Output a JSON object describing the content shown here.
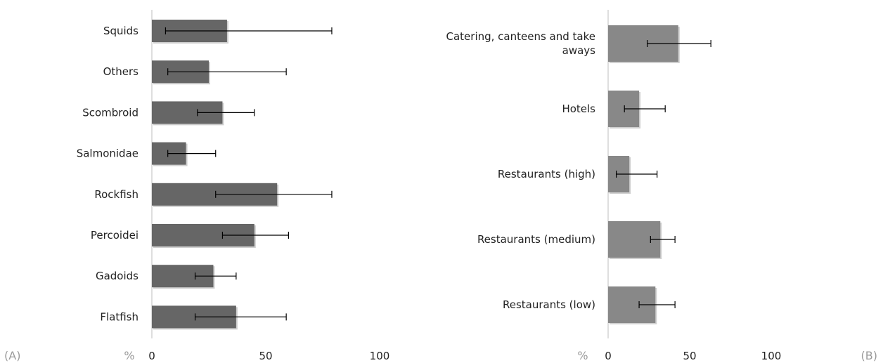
{
  "chart_data": [
    {
      "type": "bar",
      "orientation": "horizontal",
      "panel_label": "(A)",
      "unit_label": "%",
      "categories": [
        "Squids",
        "Others",
        "Scombroid",
        "Salmonidae",
        "Rockfish",
        "Percoidei",
        "Gadoids",
        "Flatfish"
      ],
      "values": [
        33,
        25,
        31,
        15,
        55,
        45,
        27,
        37
      ],
      "error_low": [
        6,
        7,
        20,
        7,
        28,
        31,
        19,
        19
      ],
      "error_high": [
        79,
        59,
        45,
        28,
        79,
        60,
        37,
        59
      ],
      "xlim": [
        0,
        100
      ],
      "xticks": [
        "0",
        "50",
        "100"
      ],
      "bar_color": "#666666",
      "grid": false
    },
    {
      "type": "bar",
      "orientation": "horizontal",
      "panel_label": "(B)",
      "unit_label": "%",
      "categories": [
        "Catering, canteens and take aways",
        "Hotels",
        "Restaurants (high)",
        "Restaurants (medium)",
        "Restaurants (low)"
      ],
      "category_lines": [
        [
          "Catering, canteens and take",
          "aways"
        ],
        [
          "Hotels"
        ],
        [
          "Restaurants (high)"
        ],
        [
          "Restaurants (medium)"
        ],
        [
          "Restaurants (low)"
        ]
      ],
      "values": [
        43,
        19,
        13,
        32,
        29
      ],
      "error_low": [
        24,
        10,
        5,
        26,
        19
      ],
      "error_high": [
        63,
        35,
        30,
        41,
        41
      ],
      "xlim": [
        0,
        100
      ],
      "xticks": [
        "0",
        "50",
        "100"
      ],
      "bar_color": "#888888",
      "grid": false
    }
  ]
}
